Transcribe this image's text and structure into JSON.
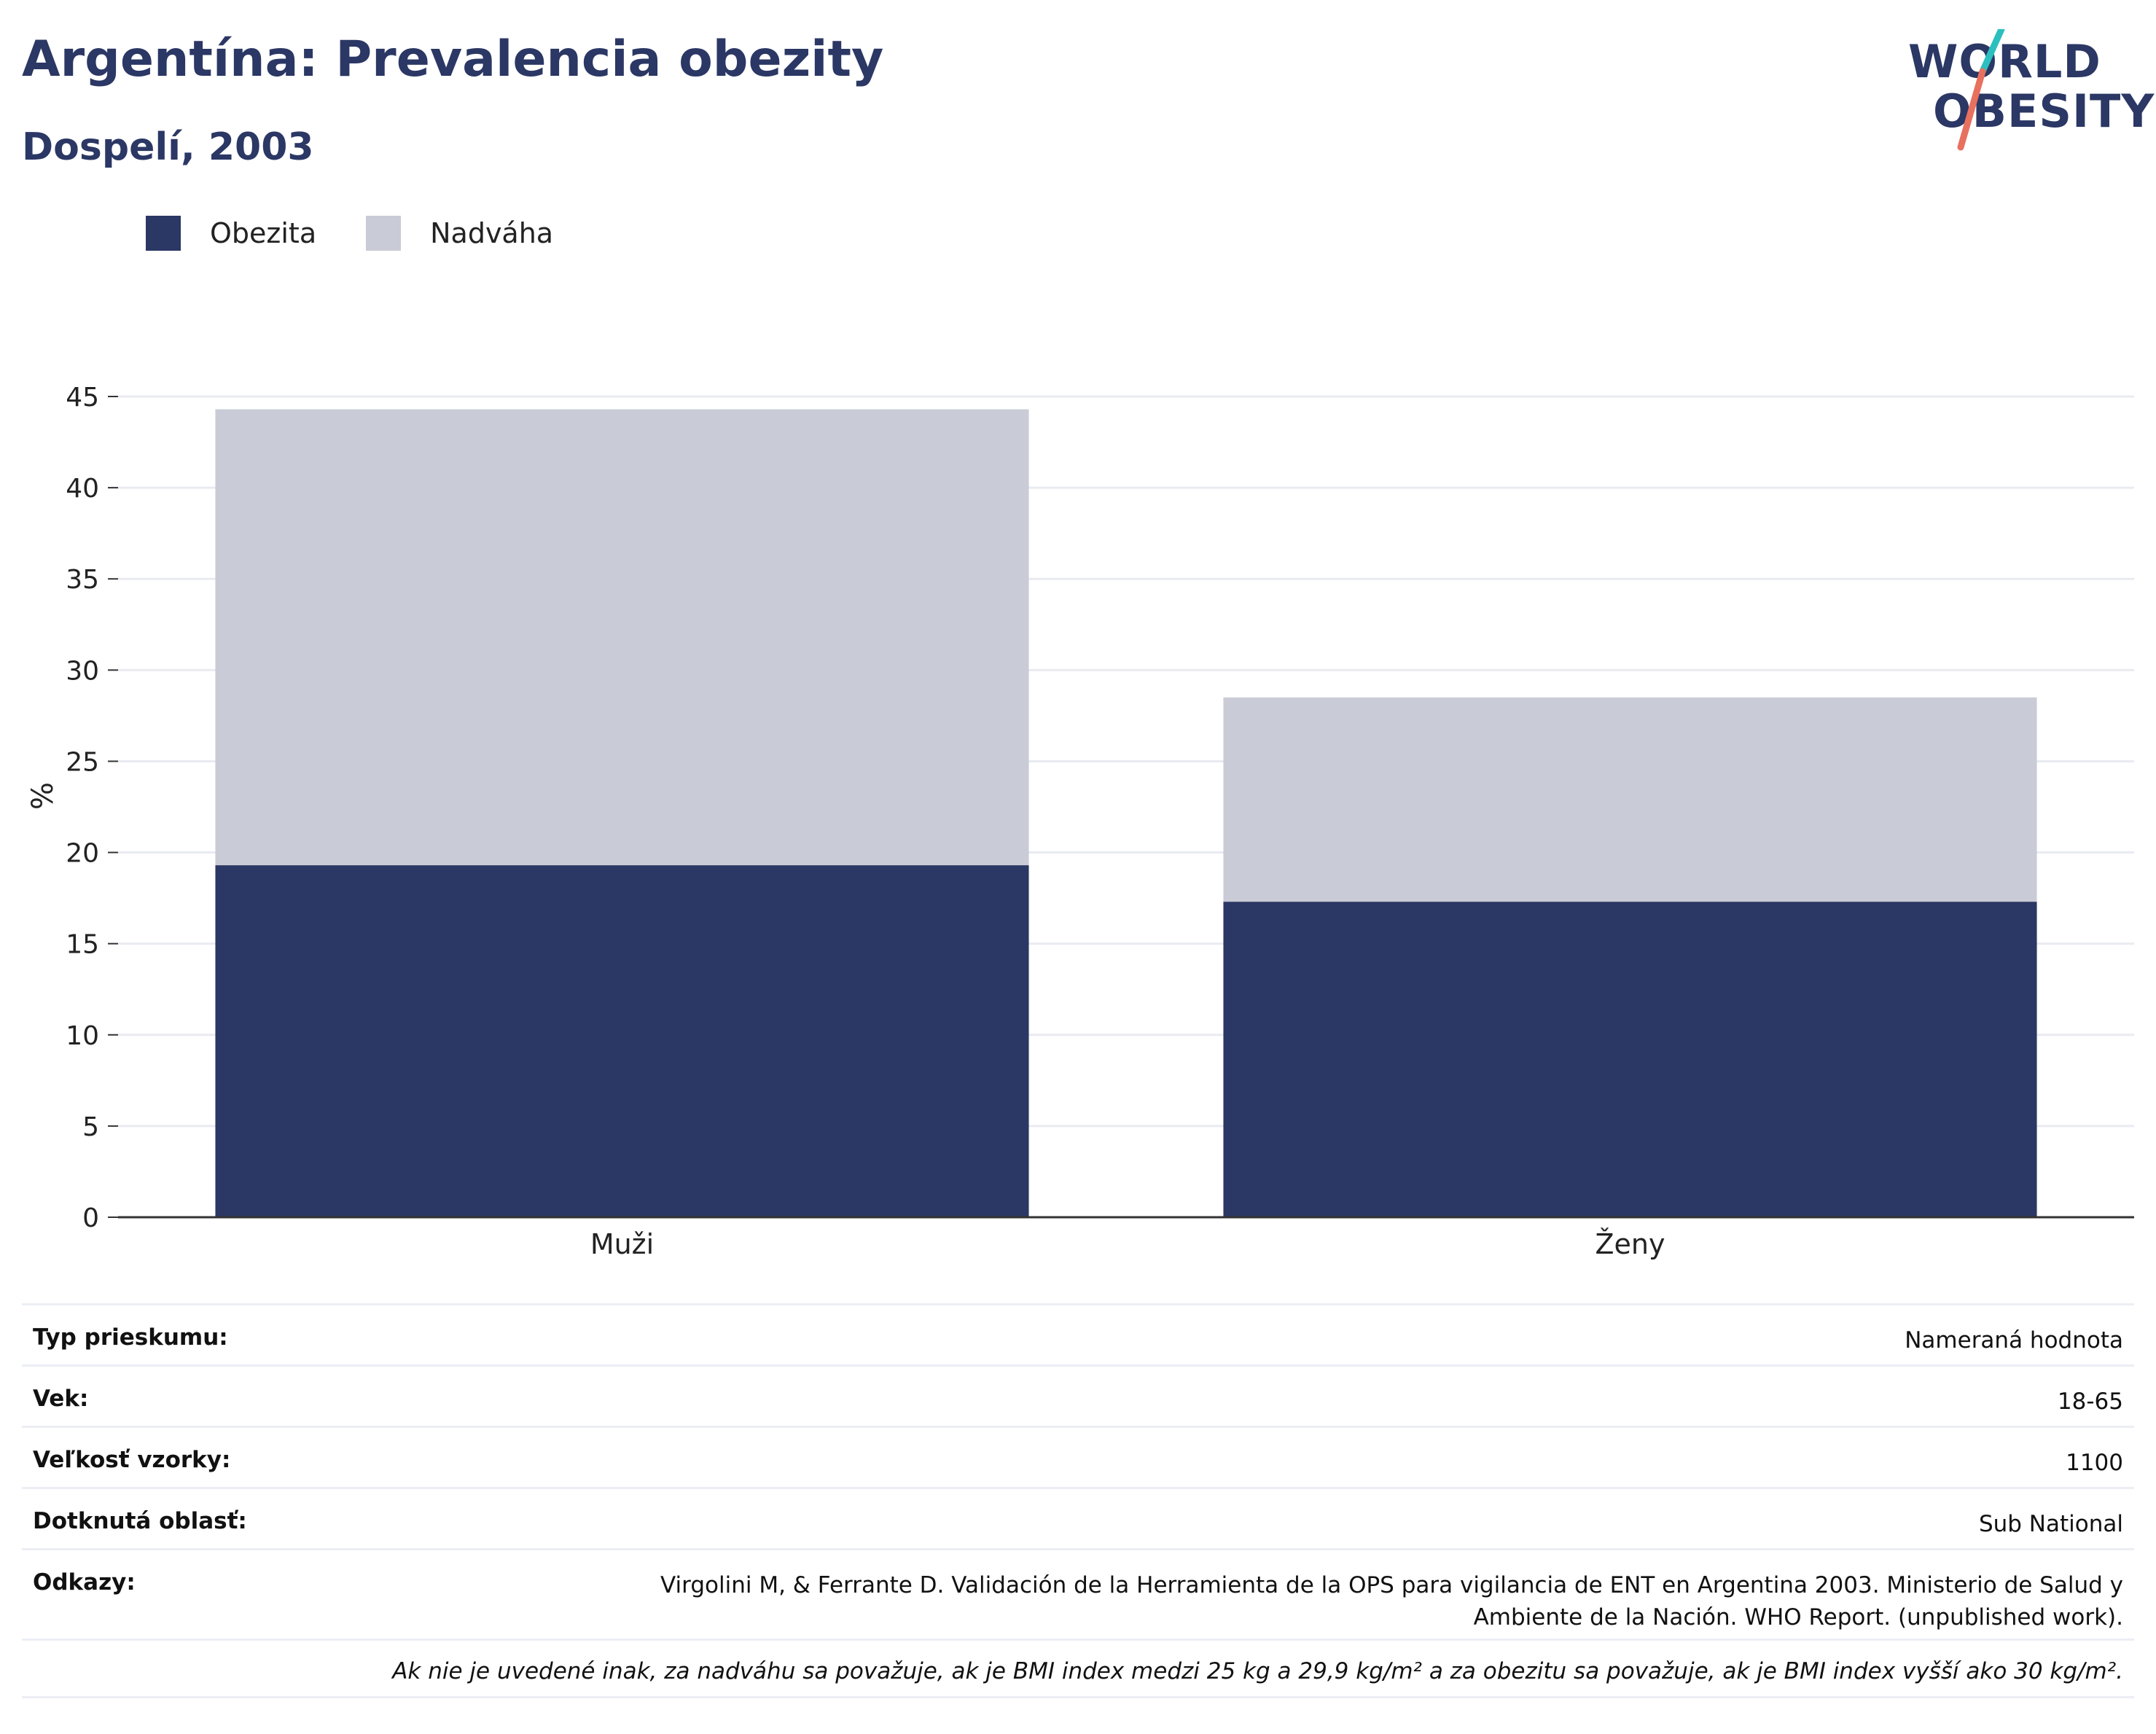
{
  "header": {
    "title": "Argentína: Prevalencia obezity",
    "subtitle": "Dospelí, 2003"
  },
  "logo": {
    "line1": "WORLD",
    "line2": "OBESITY",
    "colors": {
      "text": "#2b3764",
      "slash_top": "#2bbfbf",
      "slash_bottom": "#e8705f"
    }
  },
  "legend": [
    {
      "label": "Obezita",
      "color": "#2b3764"
    },
    {
      "label": "Nadváha",
      "color": "#c9cbd6"
    }
  ],
  "chart_data": {
    "type": "bar",
    "stacked": true,
    "categories": [
      "Muži",
      "Ženy"
    ],
    "series": [
      {
        "name": "Obezita",
        "color": "#2b3764",
        "values": [
          19.3,
          17.3
        ]
      },
      {
        "name": "Nadváha",
        "color": "#c9cbd6",
        "values": [
          25.0,
          11.2
        ]
      }
    ],
    "ylabel": "%",
    "xlabel": "",
    "ylim": [
      0,
      45
    ],
    "yticks": [
      0,
      5,
      10,
      15,
      20,
      25,
      30,
      35,
      40,
      45
    ],
    "grid": true,
    "legend_position": "top-left"
  },
  "info": {
    "rows": [
      {
        "key": "Typ prieskumu:",
        "value": "Nameraná hodnota"
      },
      {
        "key": "Vek:",
        "value": "18-65"
      },
      {
        "key": "Veľkosť vzorky:",
        "value": "1100"
      },
      {
        "key": "Dotknutá oblasť:",
        "value": "Sub National"
      },
      {
        "key": "Odkazy:",
        "value": "Virgolini M, & Ferrante D. Validación de la Herramienta de la OPS para vigilancia de ENT en Argentina 2003. Ministerio de Salud y Ambiente de la Nación. WHO Report. (unpublished work)."
      }
    ],
    "note": "Ak nie je uvedené inak, za nadváhu sa považuje, ak je BMI index medzi 25 kg a 29,9 kg/m² a za obezitu sa považuje, ak je BMI index vyšší ako 30 kg/m²."
  }
}
